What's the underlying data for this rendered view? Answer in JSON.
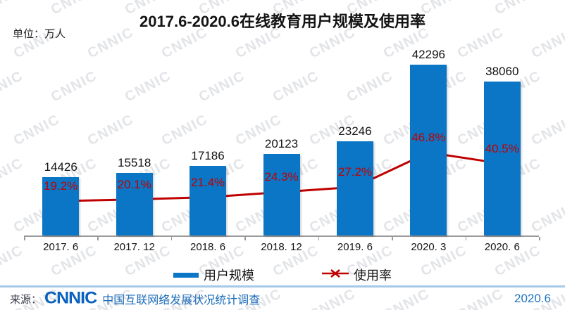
{
  "title": "2017.6-2020.6在线教育用户规模及使用率",
  "unit_label": "单位：万人",
  "chart_data": {
    "type": "bar",
    "subtype": "bar-line-combo",
    "title": "2017.6-2020.6在线教育用户规模及使用率",
    "categories": [
      "2017. 6",
      "2017. 12",
      "2018. 6",
      "2018. 12",
      "2019. 6",
      "2020. 3",
      "2020. 6"
    ],
    "series": [
      {
        "name": "用户规模",
        "type": "bar",
        "axis": "left",
        "unit": "万人",
        "values": [
          14426,
          15518,
          17186,
          20123,
          23246,
          42296,
          38060
        ]
      },
      {
        "name": "使用率",
        "type": "line",
        "axis": "right",
        "unit": "%",
        "values": [
          19.2,
          20.1,
          21.4,
          24.3,
          27.2,
          46.8,
          40.5
        ]
      }
    ],
    "xlabel": "",
    "ylabel": "单位：万人",
    "ylim_left": [
      0,
      45000
    ],
    "ylim_right": [
      0,
      100
    ],
    "grid": false,
    "data_labels": true,
    "legend_position": "bottom"
  },
  "legend": {
    "items": [
      {
        "label": "用户规模",
        "swatch": "bar"
      },
      {
        "label": "使用率",
        "swatch": "line-x"
      }
    ]
  },
  "footer": {
    "source_prefix": "来源：",
    "logo_text": "CNNIC",
    "source_name": "中国互联网络发展状况统计调查",
    "report_date": "2020.6"
  },
  "watermark_text": "CNNIC",
  "colors": {
    "bar_blue": "#0B76C6",
    "line_red": "#C00000",
    "value_label": "#141414",
    "percent_label": "#C00000",
    "axis_gray": "#9A9A9A",
    "footer_text_blue": "#1E73BE",
    "separator_blue": "#A6C9E8",
    "watermark_gray": "#CBCFD6"
  }
}
